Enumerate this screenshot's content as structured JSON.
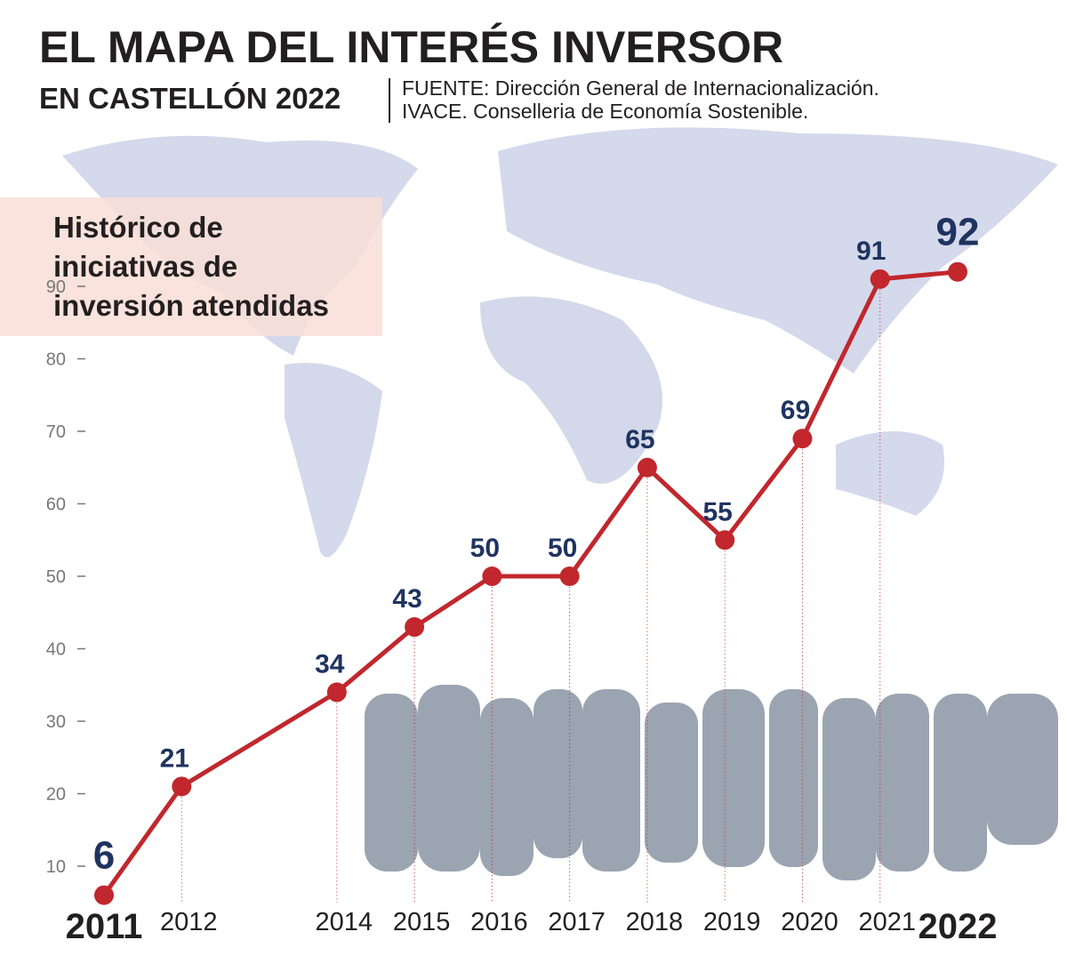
{
  "chart_data": {
    "type": "line",
    "title": "EL MAPA DEL INTERÉS INVERSOR",
    "subtitle": "EN CASTELLÓN 2022",
    "source": [
      "FUENTE: Dirección General de Internacionalización.",
      "IVACE. Conselleria de Economía Sostenible."
    ],
    "panel_title": [
      "Histórico de",
      "iniciativas de",
      "inversión atendidas"
    ],
    "x": [
      2011,
      2012,
      2014,
      2015,
      2016,
      2017,
      2018,
      2019,
      2020,
      2021,
      2022
    ],
    "values": [
      6,
      21,
      34,
      43,
      50,
      50,
      65,
      55,
      69,
      91,
      92
    ],
    "color": "#c1272d",
    "xlim": [
      2011,
      2022
    ],
    "ylim": [
      5,
      95
    ],
    "yticks": [
      10,
      20,
      30,
      40,
      50,
      60,
      70,
      80,
      90
    ]
  }
}
